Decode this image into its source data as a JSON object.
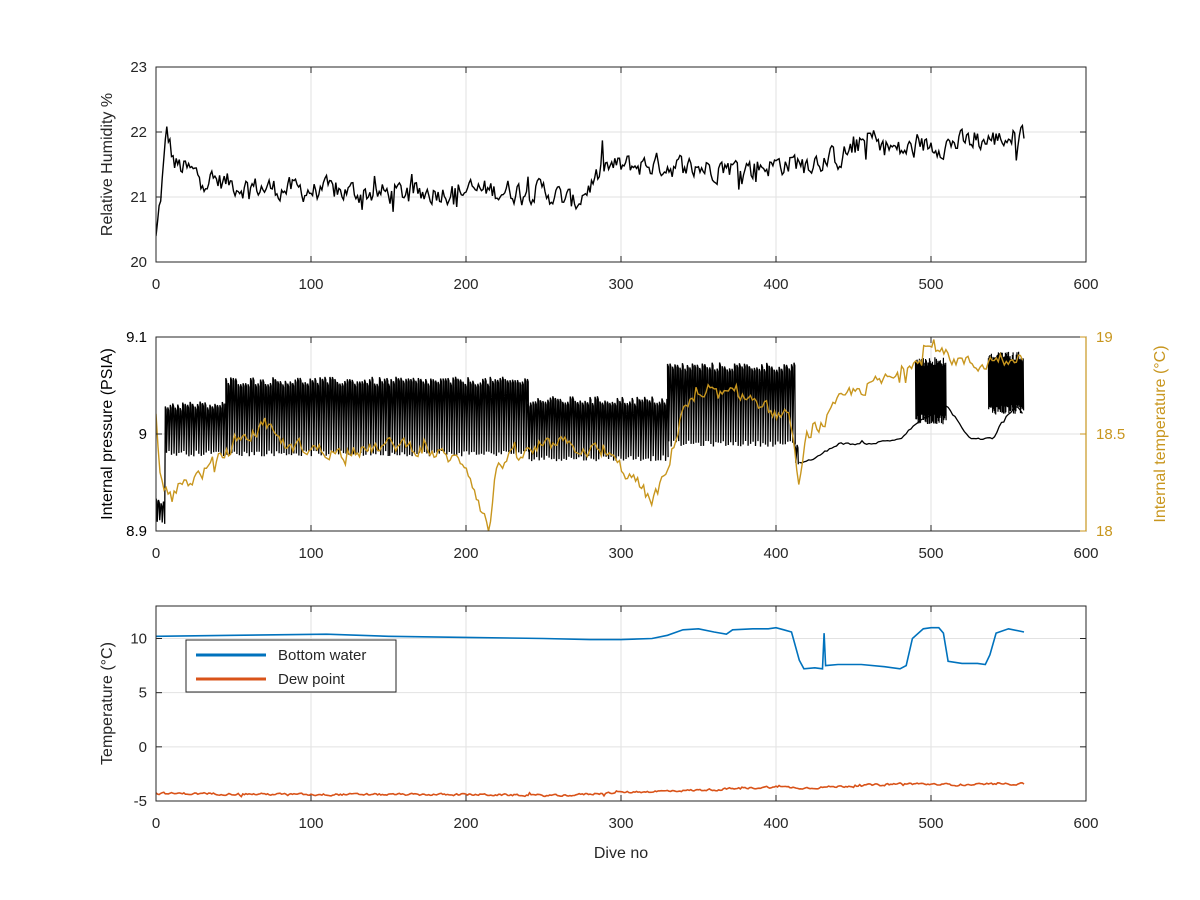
{
  "chart_data": [
    {
      "type": "line",
      "xlabel": "",
      "ylabel": "Relative Humidity %",
      "xlim": [
        0,
        600
      ],
      "ylim": [
        20,
        23
      ],
      "xticks": [
        0,
        100,
        200,
        300,
        400,
        500,
        600
      ],
      "yticks": [
        20,
        21,
        22,
        23
      ],
      "grid": true,
      "series": [
        {
          "color": "#000000",
          "trend": [
            [
              0,
              20.35
            ],
            [
              3,
              21.0
            ],
            [
              7,
              22.0
            ],
            [
              12,
              21.5
            ],
            [
              30,
              21.3
            ],
            [
              60,
              21.15
            ],
            [
              100,
              21.1
            ],
            [
              150,
              21.05
            ],
            [
              200,
              21.1
            ],
            [
              250,
              21.1
            ],
            [
              270,
              20.9
            ],
            [
              290,
              21.45
            ],
            [
              320,
              21.5
            ],
            [
              350,
              21.45
            ],
            [
              380,
              21.45
            ],
            [
              400,
              21.5
            ],
            [
              420,
              21.55
            ],
            [
              440,
              21.6
            ],
            [
              460,
              21.9
            ],
            [
              480,
              21.7
            ],
            [
              500,
              21.8
            ],
            [
              530,
              21.85
            ],
            [
              560,
              21.95
            ]
          ],
          "spread": 0.28
        }
      ]
    },
    {
      "type": "line",
      "xlabel": "",
      "ylabel": "Internal pressure (PSIA)",
      "y2label": "Internal temperature (°C)",
      "xlim": [
        0,
        600
      ],
      "ylim": [
        8.9,
        9.1
      ],
      "y2lim": [
        18,
        19
      ],
      "xticks": [
        0,
        100,
        200,
        300,
        400,
        500,
        600
      ],
      "yticks": [
        "8.9",
        "9",
        "9.1"
      ],
      "y2ticks": [
        "18",
        "18.5",
        "19"
      ],
      "grid": true,
      "series": [
        {
          "axis": "left",
          "color": "#000000",
          "segments": [
            {
              "from": 0,
              "to": 6,
              "lo": 8.91,
              "hi": 8.93
            },
            {
              "from": 6,
              "to": 45,
              "lo": 8.98,
              "hi": 9.03
            },
            {
              "from": 45,
              "to": 150,
              "lo": 8.98,
              "hi": 9.055
            },
            {
              "from": 150,
              "to": 240,
              "lo": 8.98,
              "hi": 9.055
            },
            {
              "from": 240,
              "to": 330,
              "lo": 8.975,
              "hi": 9.035
            },
            {
              "from": 330,
              "to": 412,
              "lo": 8.99,
              "hi": 9.07
            },
            {
              "from": 412,
              "to": 415,
              "lo": 8.97,
              "hi": 8.985
            }
          ],
          "tail": [
            [
              415,
              8.97
            ],
            [
              425,
              8.975
            ],
            [
              440,
              8.99
            ],
            [
              460,
              8.99
            ],
            [
              480,
              8.995
            ],
            [
              490,
              9.01
            ],
            [
              500,
              9.02
            ],
            [
              510,
              9.03
            ],
            [
              525,
              8.995
            ],
            [
              540,
              8.995
            ],
            [
              545,
              9.01
            ],
            [
              555,
              9.03
            ],
            [
              560,
              9.02
            ]
          ],
          "dense_blocks": [
            {
              "from": 490,
              "to": 510,
              "lo": 9.01,
              "hi": 9.08
            },
            {
              "from": 537,
              "to": 560,
              "lo": 9.02,
              "hi": 9.085
            }
          ]
        },
        {
          "axis": "right",
          "color": "#c8961e",
          "trend": [
            [
              0,
              18.6
            ],
            [
              3,
              18.25
            ],
            [
              8,
              18.2
            ],
            [
              20,
              18.25
            ],
            [
              30,
              18.3
            ],
            [
              45,
              18.4
            ],
            [
              70,
              18.55
            ],
            [
              80,
              18.45
            ],
            [
              120,
              18.4
            ],
            [
              160,
              18.45
            ],
            [
              200,
              18.35
            ],
            [
              215,
              18.0
            ],
            [
              220,
              18.35
            ],
            [
              260,
              18.45
            ],
            [
              290,
              18.4
            ],
            [
              310,
              18.25
            ],
            [
              320,
              18.15
            ],
            [
              330,
              18.3
            ],
            [
              340,
              18.65
            ],
            [
              360,
              18.7
            ],
            [
              380,
              18.7
            ],
            [
              400,
              18.6
            ],
            [
              410,
              18.55
            ],
            [
              415,
              18.2
            ],
            [
              420,
              18.5
            ],
            [
              430,
              18.55
            ],
            [
              445,
              18.7
            ],
            [
              460,
              18.75
            ],
            [
              480,
              18.8
            ],
            [
              490,
              18.9
            ],
            [
              500,
              18.95
            ],
            [
              510,
              18.9
            ],
            [
              530,
              18.85
            ],
            [
              545,
              18.9
            ],
            [
              560,
              18.9
            ]
          ],
          "spread": 0.06
        }
      ]
    },
    {
      "type": "line",
      "xlabel": "Dive no",
      "ylabel": "Temperature (°C)",
      "xlim": [
        0,
        600
      ],
      "ylim": [
        -5,
        13
      ],
      "xticks": [
        0,
        100,
        200,
        300,
        400,
        500,
        600
      ],
      "yticks": [
        "-5",
        "0",
        "5",
        "10"
      ],
      "grid": true,
      "legend": "top-left",
      "series": [
        {
          "name": "Bottom water",
          "color": "#0072bd",
          "points": [
            [
              0,
              10.2
            ],
            [
              50,
              10.3
            ],
            [
              110,
              10.4
            ],
            [
              150,
              10.2
            ],
            [
              200,
              10.1
            ],
            [
              250,
              10.0
            ],
            [
              280,
              9.9
            ],
            [
              300,
              9.9
            ],
            [
              320,
              10.0
            ],
            [
              330,
              10.3
            ],
            [
              340,
              10.8
            ],
            [
              350,
              10.9
            ],
            [
              360,
              10.6
            ],
            [
              368,
              10.4
            ],
            [
              372,
              10.8
            ],
            [
              385,
              10.9
            ],
            [
              395,
              10.9
            ],
            [
              400,
              11.0
            ],
            [
              405,
              10.8
            ],
            [
              410,
              10.6
            ],
            [
              415,
              8.0
            ],
            [
              418,
              7.2
            ],
            [
              425,
              7.3
            ],
            [
              430,
              7.2
            ],
            [
              431,
              10.5
            ],
            [
              432,
              7.5
            ],
            [
              440,
              7.6
            ],
            [
              455,
              7.6
            ],
            [
              470,
              7.4
            ],
            [
              480,
              7.2
            ],
            [
              484,
              7.5
            ],
            [
              488,
              10.0
            ],
            [
              495,
              10.9
            ],
            [
              500,
              11.0
            ],
            [
              505,
              11.0
            ],
            [
              508,
              10.5
            ],
            [
              511,
              7.9
            ],
            [
              520,
              7.7
            ],
            [
              530,
              7.7
            ],
            [
              535,
              7.6
            ],
            [
              538,
              8.5
            ],
            [
              542,
              10.5
            ],
            [
              550,
              10.9
            ],
            [
              560,
              10.6
            ]
          ]
        },
        {
          "name": "Dew point",
          "color": "#d95319",
          "trend": [
            [
              0,
              -4.3
            ],
            [
              100,
              -4.4
            ],
            [
              200,
              -4.4
            ],
            [
              260,
              -4.5
            ],
            [
              300,
              -4.2
            ],
            [
              350,
              -4.0
            ],
            [
              400,
              -3.7
            ],
            [
              420,
              -3.8
            ],
            [
              450,
              -3.6
            ],
            [
              480,
              -3.4
            ],
            [
              520,
              -3.5
            ],
            [
              560,
              -3.4
            ]
          ],
          "spread": 0.15
        }
      ]
    }
  ]
}
